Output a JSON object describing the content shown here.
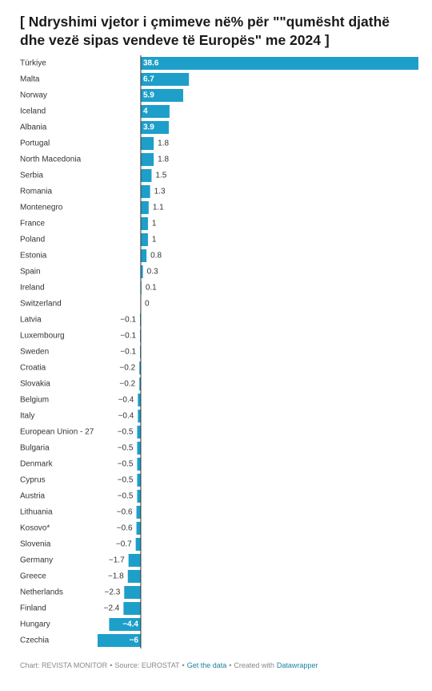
{
  "chart_data": {
    "type": "bar",
    "title": "[ Ndryshimi vjetor i çmimeve në% për \"\"qumësht  djathë dhe vezë sipas vendeve të Europës\" me 2024 ]",
    "orientation": "horizontal",
    "color": "#1d9fc9",
    "categories": [
      "Türkiye",
      "Malta",
      "Norway",
      "Iceland",
      "Albania",
      "Portugal",
      "North Macedonia",
      "Serbia",
      "Romania",
      "Montenegro",
      "France",
      "Poland",
      "Estonia",
      "Spain",
      "Ireland",
      "Switzerland",
      "Latvia",
      "Luxembourg",
      "Sweden",
      "Croatia",
      "Slovakia",
      "Belgium",
      "Italy",
      "European Union - 27",
      "Bulgaria",
      "Denmark",
      "Cyprus",
      "Austria",
      "Lithuania",
      "Kosovo*",
      "Slovenia",
      "Germany",
      "Greece",
      "Netherlands",
      "Finland",
      "Hungary",
      "Czechia"
    ],
    "values": [
      38.6,
      6.7,
      5.9,
      4,
      3.9,
      1.8,
      1.8,
      1.5,
      1.3,
      1.1,
      1,
      1,
      0.8,
      0.3,
      0.1,
      0,
      -0.1,
      -0.1,
      -0.1,
      -0.2,
      -0.2,
      -0.4,
      -0.4,
      -0.5,
      -0.5,
      -0.5,
      -0.5,
      -0.5,
      -0.6,
      -0.6,
      -0.7,
      -1.7,
      -1.8,
      -2.3,
      -2.4,
      -4.4,
      -6
    ],
    "value_labels": [
      "38.6",
      "6.7",
      "5.9",
      "4",
      "3.9",
      "1.8",
      "1.8",
      "1.5",
      "1.3",
      "1.1",
      "1",
      "1",
      "0.8",
      "0.3",
      "0.1",
      "0",
      "−0.1",
      "−0.1",
      "−0.1",
      "−0.2",
      "−0.2",
      "−0.4",
      "−0.4",
      "−0.5",
      "−0.5",
      "−0.5",
      "−0.5",
      "−0.5",
      "−0.6",
      "−0.6",
      "−0.7",
      "−1.7",
      "−1.8",
      "−2.3",
      "−2.4",
      "−4.4",
      "−6"
    ],
    "footer": [
      "Chart: REVISTA MONITOR",
      "Source: EUROSTAT",
      "Get the data",
      "Created with",
      "Datawrapper"
    ],
    "footer_separator": "•"
  }
}
